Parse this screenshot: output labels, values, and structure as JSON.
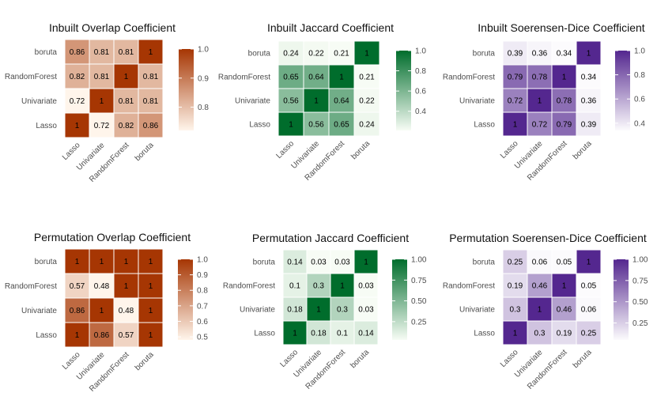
{
  "chart_data": [
    {
      "type": "heatmap",
      "title": "Inbuilt Overlap Coefficient",
      "xlabel": "",
      "ylabel": "",
      "x_categories": [
        "Lasso",
        "Univariate",
        "RandomForest",
        "boruta"
      ],
      "y_categories": [
        "Lasso",
        "Univariate",
        "RandomForest",
        "boruta"
      ],
      "values": [
        [
          1,
          0.72,
          0.82,
          0.86
        ],
        [
          0.72,
          1,
          0.81,
          0.81
        ],
        [
          0.82,
          0.81,
          1,
          0.81
        ],
        [
          0.86,
          0.81,
          0.81,
          1
        ]
      ],
      "value_labels": [
        [
          "1",
          "0.72",
          "0.82",
          "0.86"
        ],
        [
          "0.72",
          "1",
          "0.81",
          "0.81"
        ],
        [
          "0.82",
          "0.81",
          "1",
          "0.81"
        ],
        [
          "0.86",
          "0.81",
          "0.81",
          "1"
        ]
      ],
      "color_scale": {
        "low": "#fff5eb",
        "high": "#a63603",
        "min": 0.72,
        "max": 1.0
      },
      "legend_ticks": [
        "0.8",
        "0.9",
        "1.0"
      ]
    },
    {
      "type": "heatmap",
      "title": "Inbuilt Jaccard Coefficient",
      "xlabel": "",
      "ylabel": "",
      "x_categories": [
        "Lasso",
        "Univariate",
        "RandomForest",
        "boruta"
      ],
      "y_categories": [
        "Lasso",
        "Univariate",
        "RandomForest",
        "boruta"
      ],
      "values": [
        [
          1,
          0.56,
          0.65,
          0.24
        ],
        [
          0.56,
          1,
          0.64,
          0.22
        ],
        [
          0.65,
          0.64,
          1,
          0.21
        ],
        [
          0.24,
          0.22,
          0.21,
          1
        ]
      ],
      "value_labels": [
        [
          "1",
          "0.56",
          "0.65",
          "0.24"
        ],
        [
          "0.56",
          "1",
          "0.64",
          "0.22"
        ],
        [
          "0.65",
          "0.64",
          "1",
          "0.21"
        ],
        [
          "0.24",
          "0.22",
          "0.21",
          "1"
        ]
      ],
      "color_scale": {
        "low": "#f7fcf5",
        "high": "#006d2c",
        "min": 0.21,
        "max": 1.0
      },
      "legend_ticks": [
        "0.4",
        "0.6",
        "0.8",
        "1.0"
      ]
    },
    {
      "type": "heatmap",
      "title": "Inbuilt Soerensen-Dice Coefficient",
      "xlabel": "",
      "ylabel": "",
      "x_categories": [
        "Lasso",
        "Univariate",
        "RandomForest",
        "boruta"
      ],
      "y_categories": [
        "Lasso",
        "Univariate",
        "RandomForest",
        "boruta"
      ],
      "values": [
        [
          1,
          0.72,
          0.79,
          0.39
        ],
        [
          0.72,
          1,
          0.78,
          0.36
        ],
        [
          0.79,
          0.78,
          1,
          0.34
        ],
        [
          0.39,
          0.36,
          0.34,
          1
        ]
      ],
      "value_labels": [
        [
          "1",
          "0.72",
          "0.79",
          "0.39"
        ],
        [
          "0.72",
          "1",
          "0.78",
          "0.36"
        ],
        [
          "0.79",
          "0.78",
          "1",
          "0.34"
        ],
        [
          "0.39",
          "0.36",
          "0.34",
          "1"
        ]
      ],
      "color_scale": {
        "low": "#fcfbfd",
        "high": "#54278f",
        "min": 0.34,
        "max": 1.0
      },
      "legend_ticks": [
        "0.4",
        "0.6",
        "0.8",
        "1.0"
      ]
    },
    {
      "type": "heatmap",
      "title": "Permutation Overlap Coefficient",
      "xlabel": "",
      "ylabel": "",
      "x_categories": [
        "Lasso",
        "Univariate",
        "RandomForest",
        "boruta"
      ],
      "y_categories": [
        "Lasso",
        "Univariate",
        "RandomForest",
        "boruta"
      ],
      "values": [
        [
          1,
          0.86,
          0.57,
          1
        ],
        [
          0.86,
          1,
          0.48,
          1
        ],
        [
          0.57,
          0.48,
          1,
          1
        ],
        [
          1,
          1,
          1,
          1
        ]
      ],
      "value_labels": [
        [
          "1",
          "0.86",
          "0.57",
          "1"
        ],
        [
          "0.86",
          "1",
          "0.48",
          "1"
        ],
        [
          "0.57",
          "0.48",
          "1",
          "1"
        ],
        [
          "1",
          "1",
          "1",
          "1"
        ]
      ],
      "color_scale": {
        "low": "#fff5eb",
        "high": "#a63603",
        "min": 0.48,
        "max": 1.0
      },
      "legend_ticks": [
        "0.5",
        "0.6",
        "0.7",
        "0.8",
        "0.9",
        "1.0"
      ]
    },
    {
      "type": "heatmap",
      "title": "Permutation Jaccard Coefficient",
      "xlabel": "",
      "ylabel": "",
      "x_categories": [
        "Lasso",
        "Univariate",
        "RandomForest",
        "boruta"
      ],
      "y_categories": [
        "Lasso",
        "Univariate",
        "RandomForest",
        "boruta"
      ],
      "values": [
        [
          1,
          0.18,
          0.1,
          0.14
        ],
        [
          0.18,
          1,
          0.3,
          0.03
        ],
        [
          0.1,
          0.3,
          1,
          0.03
        ],
        [
          0.14,
          0.03,
          0.03,
          1
        ]
      ],
      "value_labels": [
        [
          "1",
          "0.18",
          "0.1",
          "0.14"
        ],
        [
          "0.18",
          "1",
          "0.3",
          "0.03"
        ],
        [
          "0.1",
          "0.3",
          "1",
          "0.03"
        ],
        [
          "0.14",
          "0.03",
          "0.03",
          "1"
        ]
      ],
      "color_scale": {
        "low": "#f7fcf5",
        "high": "#006d2c",
        "min": 0.03,
        "max": 1.0
      },
      "legend_ticks": [
        "0.25",
        "0.50",
        "0.75",
        "1.00"
      ]
    },
    {
      "type": "heatmap",
      "title": "Permutation Soerensen-Dice Coefficient",
      "xlabel": "",
      "ylabel": "",
      "x_categories": [
        "Lasso",
        "Univariate",
        "RandomForest",
        "boruta"
      ],
      "y_categories": [
        "Lasso",
        "Univariate",
        "RandomForest",
        "boruta"
      ],
      "values": [
        [
          1,
          0.3,
          0.19,
          0.25
        ],
        [
          0.3,
          1,
          0.46,
          0.06
        ],
        [
          0.19,
          0.46,
          1,
          0.05
        ],
        [
          0.25,
          0.06,
          0.05,
          1
        ]
      ],
      "value_labels": [
        [
          "1",
          "0.3",
          "0.19",
          "0.25"
        ],
        [
          "0.3",
          "1",
          "0.46",
          "0.06"
        ],
        [
          "0.19",
          "0.46",
          "1",
          "0.05"
        ],
        [
          "0.25",
          "0.06",
          "0.05",
          "1"
        ]
      ],
      "color_scale": {
        "low": "#fcfbfd",
        "high": "#54278f",
        "min": 0.05,
        "max": 1.0
      },
      "legend_ticks": [
        "0.25",
        "0.50",
        "0.75",
        "1.00"
      ]
    }
  ]
}
